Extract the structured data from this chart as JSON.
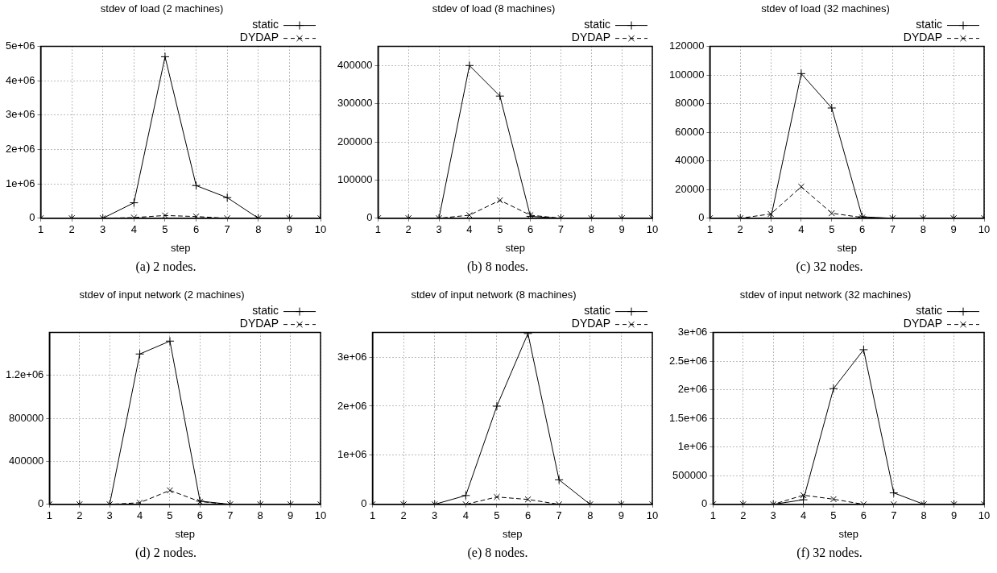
{
  "chart_data": [
    {
      "type": "line",
      "title": "stdev of load (2 machines)",
      "xlabel": "step",
      "annotations": [
        "(a) 2 nodes."
      ],
      "x": [
        1,
        2,
        3,
        4,
        5,
        6,
        7,
        8,
        9,
        10
      ],
      "xlim": [
        1,
        10
      ],
      "xticks": [
        1,
        2,
        3,
        4,
        5,
        6,
        7,
        8,
        9,
        10
      ],
      "ylim": [
        0,
        5000000
      ],
      "yticks": [
        0,
        {
          "value": 1000000,
          "label": "1e+06"
        },
        {
          "value": 2000000,
          "label": "2e+06"
        },
        {
          "value": 3000000,
          "label": "3e+06"
        },
        {
          "value": 4000000,
          "label": "4e+06"
        },
        {
          "value": 5000000,
          "label": "5e+06"
        }
      ],
      "grid": true,
      "legend": "top right",
      "series": [
        {
          "name": "static",
          "color": "#000000",
          "marker": "cross",
          "line_style": "solid",
          "values": [
            0,
            0,
            0,
            450000,
            4700000,
            950000,
            600000,
            0,
            0,
            0
          ]
        },
        {
          "name": "DYDAP",
          "color": "#000000",
          "marker": "x",
          "line_style": "dashed",
          "values": [
            0,
            0,
            0,
            20000,
            80000,
            50000,
            0,
            0,
            0,
            0
          ]
        }
      ]
    },
    {
      "type": "line",
      "title": "stdev of load (8 machines)",
      "xlabel": "step",
      "annotations": [
        "(b) 8 nodes."
      ],
      "x": [
        1,
        2,
        3,
        4,
        5,
        6,
        7,
        8,
        9,
        10
      ],
      "xlim": [
        1,
        10
      ],
      "xticks": [
        1,
        2,
        3,
        4,
        5,
        6,
        7,
        8,
        9,
        10
      ],
      "ylim": [
        0,
        450000
      ],
      "yticks": [
        0,
        100000,
        200000,
        300000,
        400000
      ],
      "grid": true,
      "legend": "top right",
      "series": [
        {
          "name": "static",
          "color": "#000000",
          "marker": "cross",
          "line_style": "solid",
          "values": [
            0,
            0,
            0,
            400000,
            320000,
            5000,
            0,
            0,
            0,
            0
          ]
        },
        {
          "name": "DYDAP",
          "color": "#000000",
          "marker": "x",
          "line_style": "dashed",
          "values": [
            0,
            0,
            0,
            8000,
            47000,
            8000,
            0,
            0,
            0,
            0
          ]
        }
      ]
    },
    {
      "type": "line",
      "title": "stdev of load (32 machines)",
      "xlabel": "step",
      "annotations": [
        "(c) 32 nodes."
      ],
      "x": [
        1,
        2,
        3,
        4,
        5,
        6,
        7,
        8,
        9,
        10
      ],
      "xlim": [
        1,
        10
      ],
      "xticks": [
        1,
        2,
        3,
        4,
        5,
        6,
        7,
        8,
        9,
        10
      ],
      "ylim": [
        0,
        120000
      ],
      "yticks": [
        0,
        20000,
        40000,
        60000,
        80000,
        100000,
        120000
      ],
      "grid": true,
      "legend": "top right",
      "series": [
        {
          "name": "static",
          "color": "#000000",
          "marker": "cross",
          "line_style": "solid",
          "values": [
            0,
            0,
            0,
            101000,
            77000,
            1000,
            0,
            0,
            0,
            0
          ]
        },
        {
          "name": "DYDAP",
          "color": "#000000",
          "marker": "x",
          "line_style": "dashed",
          "values": [
            0,
            0,
            3000,
            22000,
            3500,
            500,
            0,
            0,
            0,
            0
          ]
        }
      ]
    },
    {
      "type": "line",
      "title": "stdev of input network (2 machines)",
      "xlabel": "step",
      "annotations": [
        "(d) 2 nodes."
      ],
      "x": [
        1,
        2,
        3,
        4,
        5,
        6,
        7,
        8,
        9,
        10
      ],
      "xlim": [
        1,
        10
      ],
      "xticks": [
        1,
        2,
        3,
        4,
        5,
        6,
        7,
        8,
        9,
        10
      ],
      "ylim": [
        0,
        1600000
      ],
      "yticks": [
        0,
        400000,
        800000,
        {
          "value": 1200000,
          "label": "1.2e+06"
        }
      ],
      "grid": true,
      "legend": "top right",
      "series": [
        {
          "name": "static",
          "color": "#000000",
          "marker": "cross",
          "line_style": "solid",
          "values": [
            0,
            0,
            0,
            1400000,
            1520000,
            30000,
            0,
            0,
            0,
            0
          ]
        },
        {
          "name": "DYDAP",
          "color": "#000000",
          "marker": "x",
          "line_style": "dashed",
          "values": [
            0,
            0,
            0,
            15000,
            130000,
            25000,
            0,
            0,
            0,
            0
          ]
        }
      ]
    },
    {
      "type": "line",
      "title": "stdev of input network (8 machines)",
      "xlabel": "step",
      "annotations": [
        "(e) 8 nodes."
      ],
      "x": [
        1,
        2,
        3,
        4,
        5,
        6,
        7,
        8,
        9,
        10
      ],
      "xlim": [
        1,
        10
      ],
      "xticks": [
        1,
        2,
        3,
        4,
        5,
        6,
        7,
        8,
        9,
        10
      ],
      "ylim": [
        0,
        3500000
      ],
      "yticks": [
        0,
        {
          "value": 1000000,
          "label": "1e+06"
        },
        {
          "value": 2000000,
          "label": "2e+06"
        },
        {
          "value": 3000000,
          "label": "3e+06"
        }
      ],
      "grid": true,
      "legend": "top right",
      "series": [
        {
          "name": "static",
          "color": "#000000",
          "marker": "cross",
          "line_style": "solid",
          "values": [
            0,
            0,
            0,
            180000,
            2000000,
            3480000,
            500000,
            0,
            0,
            0
          ]
        },
        {
          "name": "DYDAP",
          "color": "#000000",
          "marker": "x",
          "line_style": "dashed",
          "values": [
            0,
            0,
            0,
            0,
            150000,
            100000,
            0,
            0,
            0,
            0
          ]
        }
      ]
    },
    {
      "type": "line",
      "title": "stdev of input network (32 machines)",
      "xlabel": "step",
      "annotations": [
        "(f) 32 nodes."
      ],
      "x": [
        1,
        2,
        3,
        4,
        5,
        6,
        7,
        8,
        9,
        10
      ],
      "xlim": [
        1,
        10
      ],
      "xticks": [
        1,
        2,
        3,
        4,
        5,
        6,
        7,
        8,
        9,
        10
      ],
      "ylim": [
        0,
        3000000
      ],
      "yticks": [
        0,
        500000,
        {
          "value": 1000000,
          "label": "1e+06"
        },
        {
          "value": 1500000,
          "label": "1.5e+06"
        },
        {
          "value": 2000000,
          "label": "2e+06"
        },
        {
          "value": 2500000,
          "label": "2.5e+06"
        },
        {
          "value": 3000000,
          "label": "3e+06"
        }
      ],
      "grid": true,
      "legend": "top right",
      "series": [
        {
          "name": "static",
          "color": "#000000",
          "marker": "cross",
          "line_style": "solid",
          "values": [
            0,
            0,
            0,
            80000,
            2020000,
            2700000,
            200000,
            0,
            0,
            0
          ]
        },
        {
          "name": "DYDAP",
          "color": "#000000",
          "marker": "x",
          "line_style": "dashed",
          "values": [
            0,
            0,
            0,
            160000,
            90000,
            0,
            0,
            0,
            0,
            0
          ]
        }
      ]
    }
  ]
}
